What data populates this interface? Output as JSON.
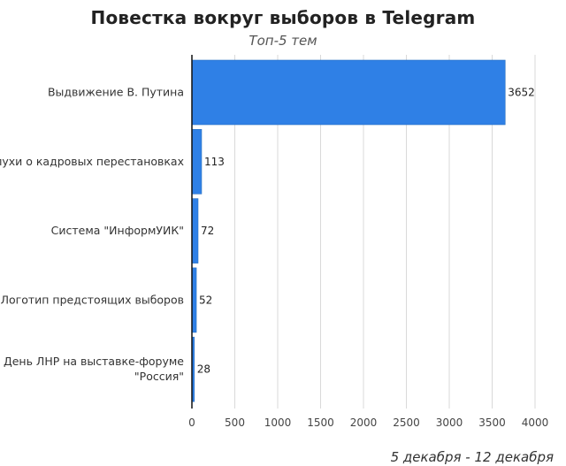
{
  "chart_data": {
    "type": "bar",
    "orientation": "horizontal",
    "title": "Повестка вокруг выборов в Telegram",
    "subtitle": "Топ-5 тем",
    "caption": "5 декабря - 12 декабря",
    "categories": [
      [
        "Выдвижение В. Путина"
      ],
      [
        "Слухи о кадровых перестановках"
      ],
      [
        "Система \"ИнформУИК\""
      ],
      [
        "Логотип предстоящих выборов"
      ],
      [
        "День ЛНР на выставке-форуме",
        "\"Россия\""
      ]
    ],
    "values": [
      3652,
      113,
      72,
      52,
      28
    ],
    "xlim": [
      0,
      4000
    ],
    "xticks": [
      0,
      500,
      1000,
      1500,
      2000,
      2500,
      3000,
      3500,
      4000
    ],
    "grid": "vertical",
    "legend": "none",
    "colors": {
      "bar": "#2f80e6",
      "bar_border": "#2a6fbf",
      "grid": "#d9d9d9",
      "axis": "#111111"
    }
  }
}
